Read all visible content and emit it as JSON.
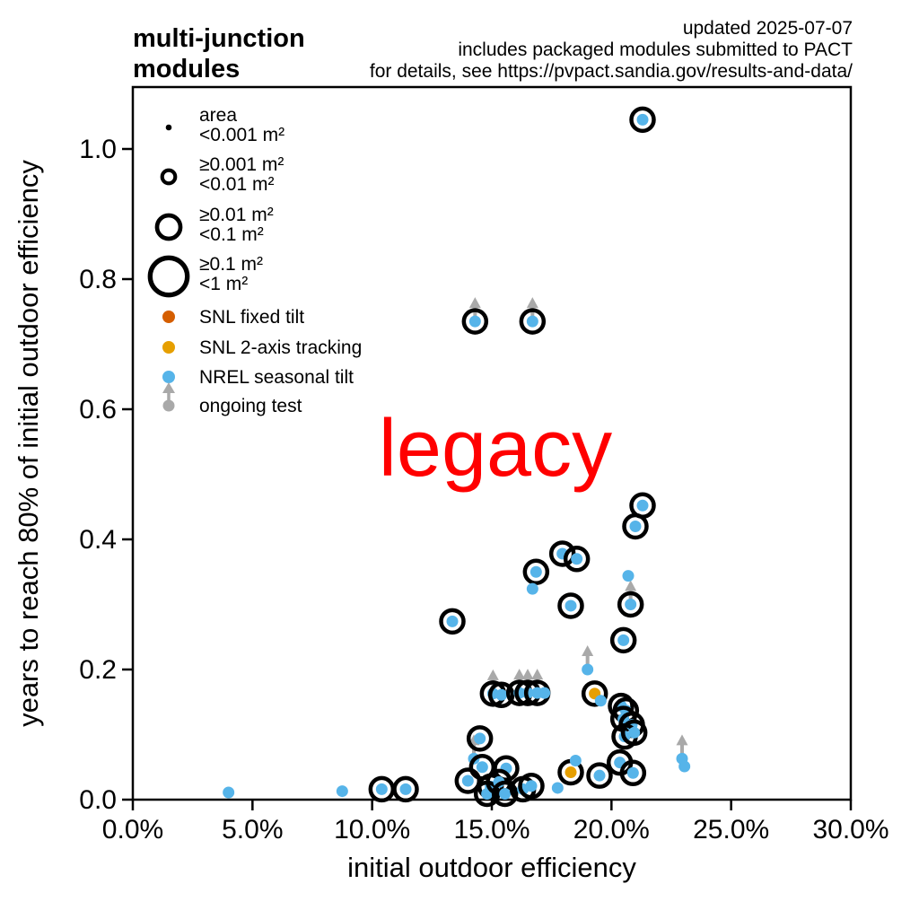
{
  "header": {
    "title_line1": "multi-junction",
    "title_line2": "modules",
    "updated": "updated 2025-07-07",
    "note1": "includes packaged modules submitted to PACT",
    "note2": "for details, see https://pvpact.sandia.gov/results-and-data/"
  },
  "annotation": {
    "text": "legacy"
  },
  "legend": {
    "size_classes": [
      {
        "line1": "area",
        "line2": "<0.001 m²",
        "r": 3.3,
        "filled": true
      },
      {
        "line1": "≥0.001 m²",
        "line2": "<0.01 m²",
        "r": 7.3,
        "filled": false
      },
      {
        "line1": "≥0.01 m²",
        "line2": "<0.1 m²",
        "r": 13,
        "filled": false
      },
      {
        "line1": "≥0.1 m²",
        "line2": "<1 m²",
        "r": 20.7,
        "filled": false
      }
    ],
    "series": [
      {
        "label": "SNL fixed tilt",
        "color": "#d55e00",
        "marker": "dot"
      },
      {
        "label": "SNL 2-axis tracking",
        "color": "#e69f00",
        "marker": "dot"
      },
      {
        "label": "NREL seasonal tilt",
        "color": "#56b4e9",
        "marker": "dot"
      },
      {
        "label": "ongoing test",
        "color": "#a9a9a9",
        "marker": "arrow"
      }
    ]
  },
  "chart_data": {
    "type": "scatter",
    "xlabel": "initial outdoor efficiency",
    "ylabel": "years to reach 80% of initial outdoor efficiency",
    "xlim": [
      0,
      30
    ],
    "ylim": [
      0,
      1.095
    ],
    "x_ticks": [
      0,
      5,
      10,
      15,
      20,
      25,
      30
    ],
    "x_tick_labels": [
      "0.0%",
      "5.0%",
      "10.0%",
      "15.0%",
      "20.0%",
      "25.0%",
      "30.0%"
    ],
    "y_ticks": [
      0,
      0.2,
      0.4,
      0.6,
      0.8,
      1.0
    ],
    "y_tick_labels": [
      "0.0",
      "0.2",
      "0.4",
      "0.6",
      "0.8",
      "1.0"
    ],
    "colors": {
      "nrel_blue": "#56b4e9",
      "snl_2axis": "#e69f00",
      "snl_fixed": "#d55e00",
      "ongoing_gray": "#a9a9a9",
      "annotation_red": "#ff0000",
      "ring_black": "#000000"
    },
    "points": [
      {
        "x": 4.0,
        "y": 0.011,
        "c": "blue",
        "ring": false,
        "arrow": false
      },
      {
        "x": 8.75,
        "y": 0.013,
        "c": "blue",
        "ring": false,
        "arrow": false
      },
      {
        "x": 10.4,
        "y": 0.016,
        "c": "blue",
        "ring": true,
        "arrow": false
      },
      {
        "x": 11.4,
        "y": 0.016,
        "c": "blue",
        "ring": true,
        "arrow": false
      },
      {
        "x": 21.3,
        "y": 1.045,
        "c": "blue",
        "ring": true,
        "arrow": false
      },
      {
        "x": 14.3,
        "y": 0.735,
        "c": "blue",
        "ring": true,
        "arrow": true
      },
      {
        "x": 16.7,
        "y": 0.735,
        "c": "blue",
        "ring": true,
        "arrow": true
      },
      {
        "x": 21.3,
        "y": 0.452,
        "c": "blue",
        "ring": true,
        "arrow": false
      },
      {
        "x": 21.0,
        "y": 0.42,
        "c": "blue",
        "ring": true,
        "arrow": false
      },
      {
        "x": 17.95,
        "y": 0.378,
        "c": "blue",
        "ring": true,
        "arrow": false
      },
      {
        "x": 18.55,
        "y": 0.37,
        "c": "blue",
        "ring": true,
        "arrow": false
      },
      {
        "x": 16.85,
        "y": 0.35,
        "c": "blue",
        "ring": true,
        "arrow": false
      },
      {
        "x": 16.7,
        "y": 0.324,
        "c": "blue",
        "ring": false,
        "arrow": false
      },
      {
        "x": 20.7,
        "y": 0.344,
        "c": "blue",
        "ring": false,
        "arrow": false
      },
      {
        "x": 18.3,
        "y": 0.298,
        "c": "blue",
        "ring": true,
        "arrow": false
      },
      {
        "x": 20.8,
        "y": 0.3,
        "c": "blue",
        "ring": true,
        "arrow": true
      },
      {
        "x": 20.5,
        "y": 0.245,
        "c": "blue",
        "ring": true,
        "arrow": false
      },
      {
        "x": 13.35,
        "y": 0.274,
        "c": "blue",
        "ring": true,
        "arrow": false
      },
      {
        "x": 19.0,
        "y": 0.2,
        "c": "blue",
        "ring": false,
        "arrow": true
      },
      {
        "x": 15.05,
        "y": 0.163,
        "c": "blue",
        "ring": true,
        "arrow": true
      },
      {
        "x": 15.4,
        "y": 0.161,
        "c": "blue",
        "ring": true,
        "arrow": false
      },
      {
        "x": 16.15,
        "y": 0.164,
        "c": "blue",
        "ring": true,
        "arrow": true
      },
      {
        "x": 16.5,
        "y": 0.164,
        "c": "blue",
        "ring": true,
        "arrow": true
      },
      {
        "x": 16.9,
        "y": 0.164,
        "c": "blue",
        "ring": true,
        "arrow": true
      },
      {
        "x": 17.2,
        "y": 0.164,
        "c": "blue",
        "ring": false,
        "arrow": false
      },
      {
        "x": 19.3,
        "y": 0.163,
        "c": "amber",
        "ring": true,
        "arrow": false
      },
      {
        "x": 19.55,
        "y": 0.152,
        "c": "blue",
        "ring": false,
        "arrow": false
      },
      {
        "x": 20.4,
        "y": 0.144,
        "c": "blue",
        "ring": true,
        "arrow": false
      },
      {
        "x": 20.6,
        "y": 0.137,
        "c": "blue",
        "ring": true,
        "arrow": false
      },
      {
        "x": 20.5,
        "y": 0.124,
        "c": "blue",
        "ring": true,
        "arrow": false
      },
      {
        "x": 20.85,
        "y": 0.115,
        "c": "blue",
        "ring": true,
        "arrow": false
      },
      {
        "x": 20.55,
        "y": 0.097,
        "c": "blue",
        "ring": true,
        "arrow": false
      },
      {
        "x": 20.95,
        "y": 0.103,
        "c": "blue",
        "ring": true,
        "arrow": false
      },
      {
        "x": 14.5,
        "y": 0.094,
        "c": "blue",
        "ring": true,
        "arrow": false
      },
      {
        "x": 14.25,
        "y": 0.063,
        "c": "blue",
        "ring": false,
        "arrow": true
      },
      {
        "x": 14.6,
        "y": 0.05,
        "c": "blue",
        "ring": true,
        "arrow": false
      },
      {
        "x": 15.6,
        "y": 0.048,
        "c": "blue",
        "ring": true,
        "arrow": false
      },
      {
        "x": 14.0,
        "y": 0.029,
        "c": "blue",
        "ring": true,
        "arrow": false
      },
      {
        "x": 14.95,
        "y": 0.02,
        "c": "blue",
        "ring": true,
        "arrow": false
      },
      {
        "x": 14.8,
        "y": 0.009,
        "c": "blue",
        "ring": true,
        "arrow": false
      },
      {
        "x": 15.3,
        "y": 0.027,
        "c": "blue",
        "ring": true,
        "arrow": false
      },
      {
        "x": 15.55,
        "y": 0.009,
        "c": "blue",
        "ring": true,
        "arrow": false
      },
      {
        "x": 16.3,
        "y": 0.016,
        "c": "blue",
        "ring": true,
        "arrow": false
      },
      {
        "x": 16.65,
        "y": 0.021,
        "c": "blue",
        "ring": true,
        "arrow": false
      },
      {
        "x": 17.75,
        "y": 0.018,
        "c": "blue",
        "ring": false,
        "arrow": false
      },
      {
        "x": 18.3,
        "y": 0.042,
        "c": "amber",
        "ring": true,
        "arrow": false
      },
      {
        "x": 18.5,
        "y": 0.06,
        "c": "blue",
        "ring": false,
        "arrow": false
      },
      {
        "x": 19.5,
        "y": 0.037,
        "c": "blue",
        "ring": true,
        "arrow": false
      },
      {
        "x": 20.35,
        "y": 0.057,
        "c": "blue",
        "ring": true,
        "arrow": false
      },
      {
        "x": 20.9,
        "y": 0.041,
        "c": "blue",
        "ring": true,
        "arrow": false
      },
      {
        "x": 22.95,
        "y": 0.063,
        "c": "blue",
        "ring": false,
        "arrow": true
      },
      {
        "x": 23.05,
        "y": 0.051,
        "c": "blue",
        "ring": false,
        "arrow": false
      }
    ]
  }
}
